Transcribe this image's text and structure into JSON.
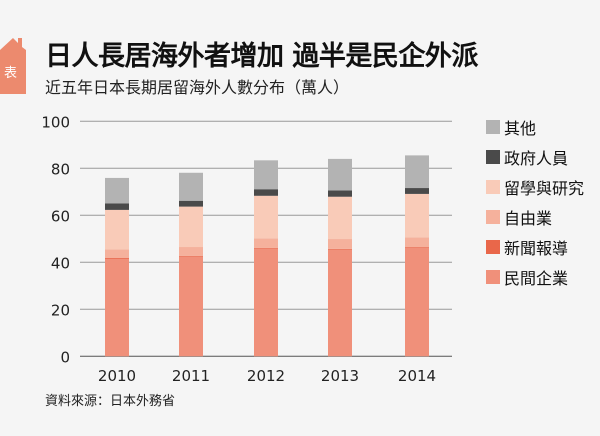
{
  "header": {
    "badge": "表",
    "title": "日人長居海外者增加  過半是民企外派",
    "subtitle": "近五年日本長期居留海外人數分布（萬人）"
  },
  "source": "資料來源：日本外務省",
  "chart_data": {
    "type": "bar",
    "stacked": true,
    "title": "日人長居海外者增加  過半是民企外派",
    "subtitle": "近五年日本長期居留海外人數分布（萬人）",
    "ylabel": "萬人",
    "ylim": [
      0,
      100
    ],
    "yticks": [
      0,
      20,
      40,
      60,
      80,
      100
    ],
    "categories": [
      "2010",
      "2011",
      "2012",
      "2013",
      "2014"
    ],
    "legend_position": "right",
    "grid": true,
    "series": [
      {
        "name": "民間企業",
        "color": "#f0907a",
        "values": [
          41.4,
          42.4,
          45.8,
          45.4,
          46.2
        ]
      },
      {
        "name": "新聞報導",
        "color": "#e9674a",
        "values": [
          0.4,
          0.3,
          0.3,
          0.3,
          0.3
        ]
      },
      {
        "name": "自由業",
        "color": "#f5b19c",
        "values": [
          3.7,
          3.8,
          4.1,
          4.2,
          4.1
        ]
      },
      {
        "name": "留學與研究",
        "color": "#f9cbb8",
        "values": [
          16.8,
          17.2,
          18.1,
          18.0,
          18.5
        ]
      },
      {
        "name": "政府人員",
        "color": "#4a4a4a",
        "values": [
          2.8,
          2.5,
          2.8,
          2.7,
          2.5
        ]
      },
      {
        "name": "其他",
        "color": "#b3b3b3",
        "values": [
          10.8,
          11.9,
          12.3,
          13.4,
          13.9
        ]
      }
    ]
  }
}
